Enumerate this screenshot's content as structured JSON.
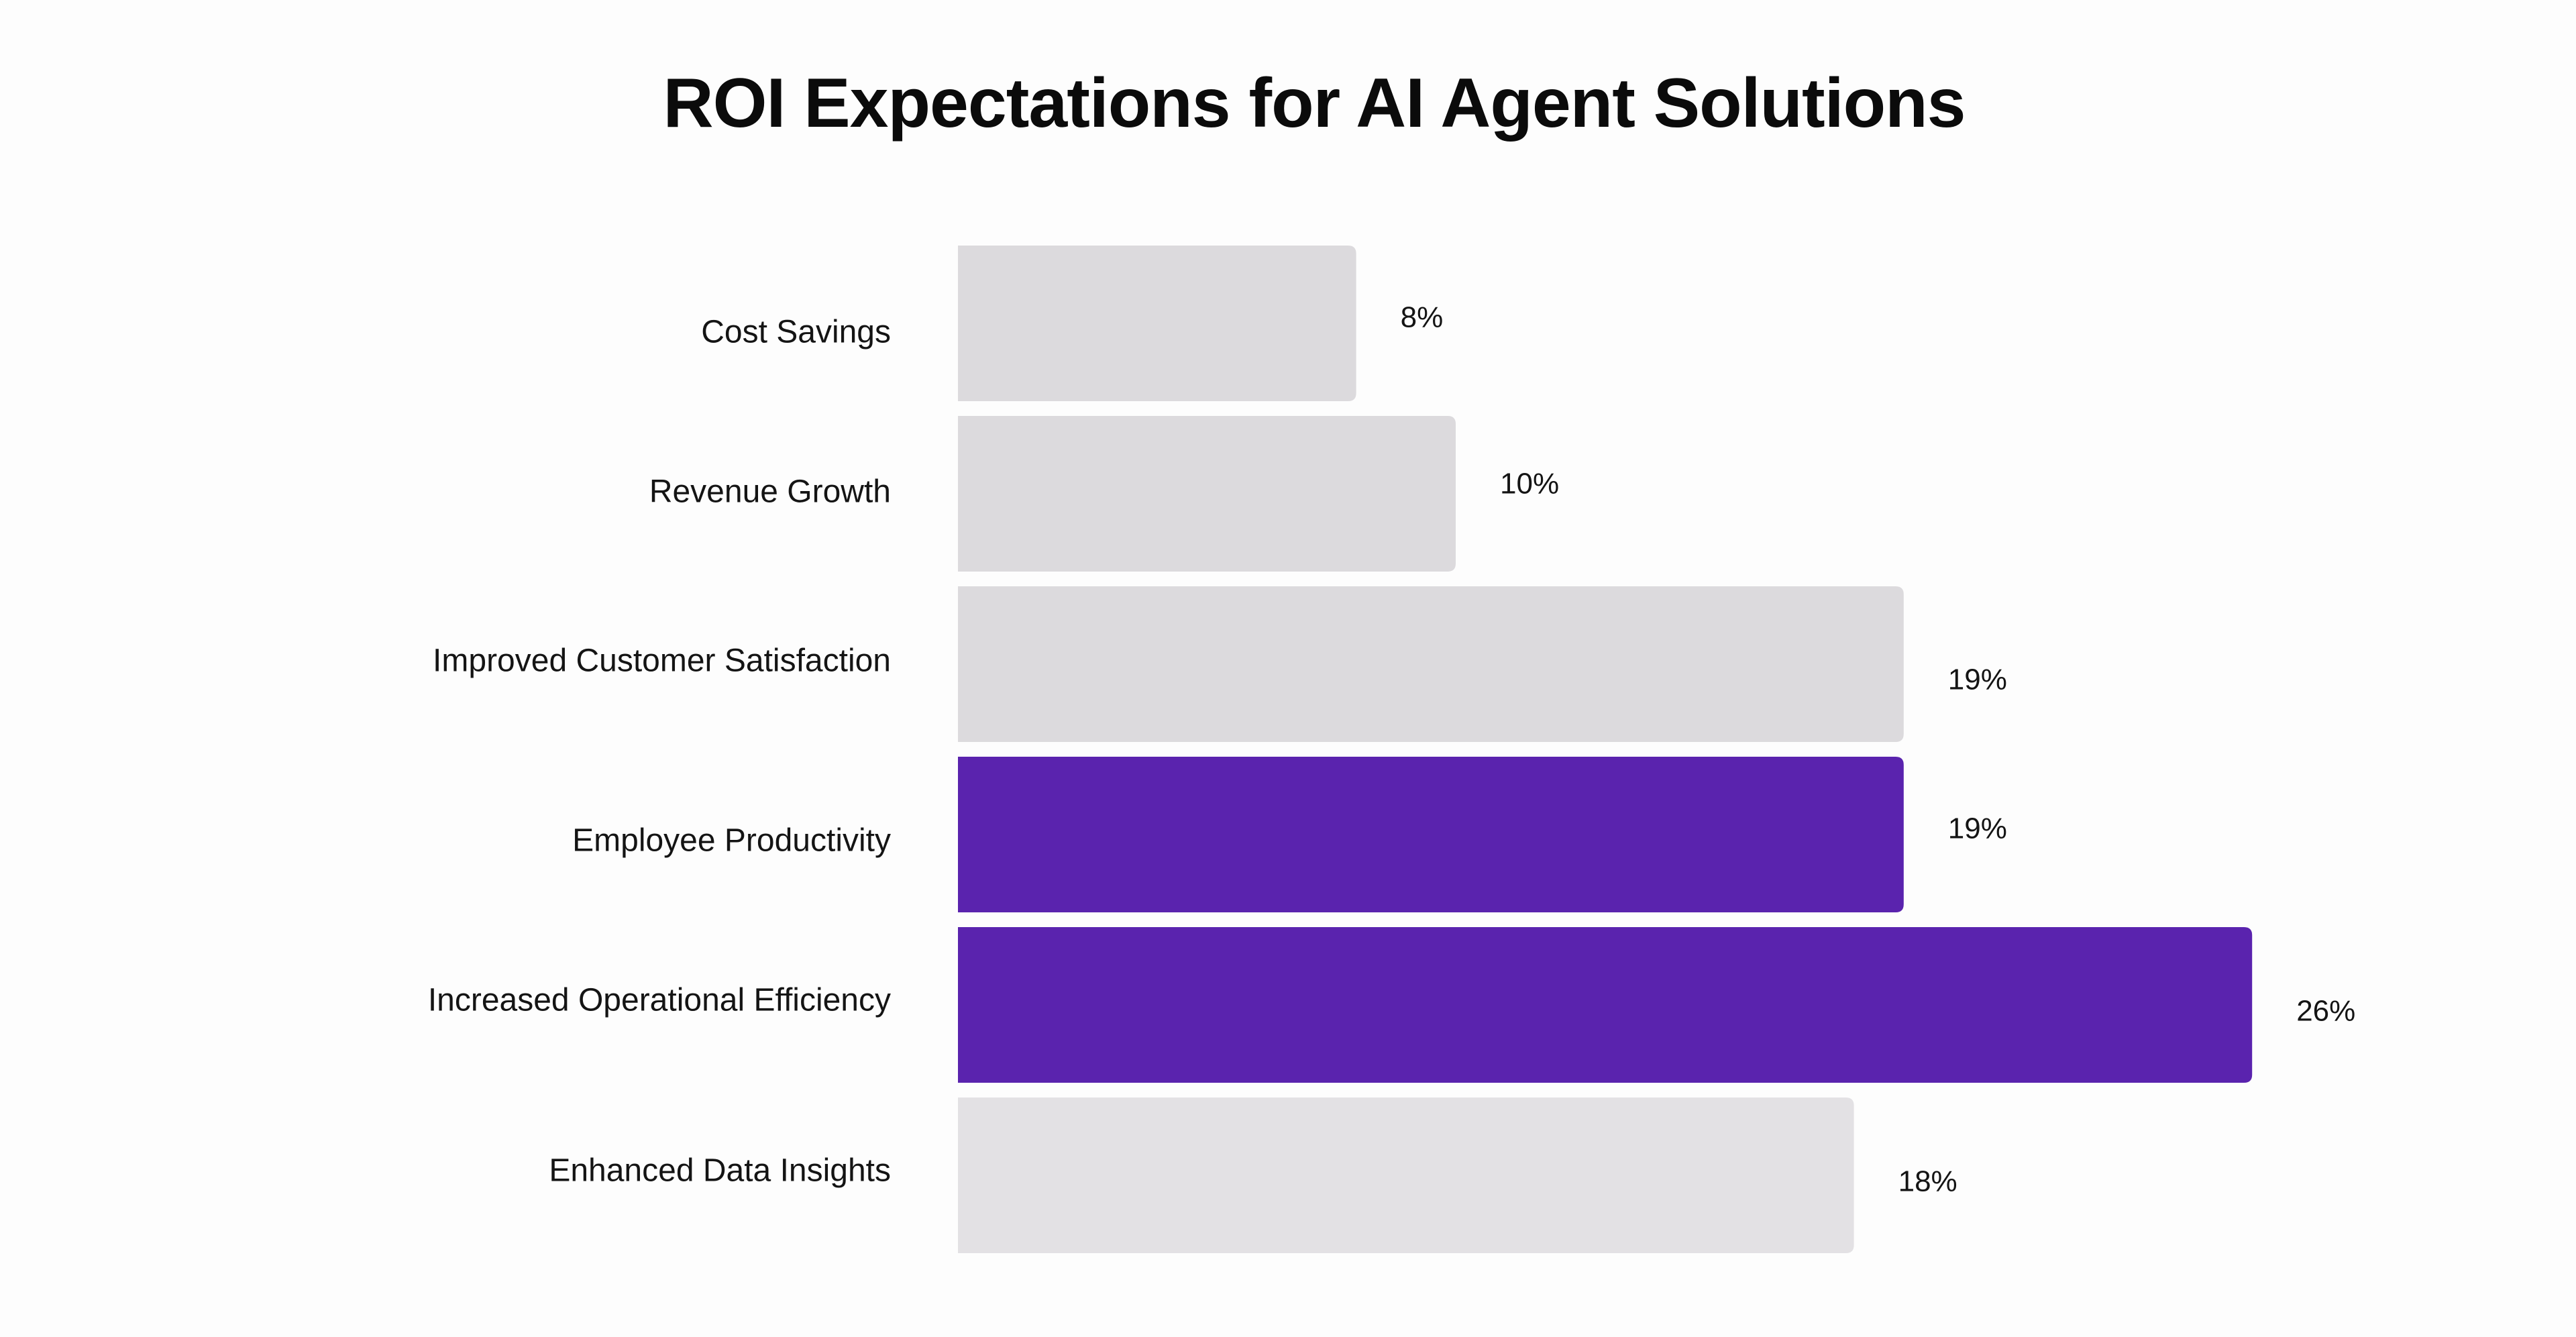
{
  "chart_data": {
    "type": "bar",
    "orientation": "horizontal",
    "title": "ROI Expectations for AI Agent Solutions",
    "categories": [
      "Cost Savings",
      "Revenue Growth",
      "Improved Customer Satisfaction",
      "Employee Productivity",
      "Increased Operational Efficiency",
      "Enhanced Data Insights"
    ],
    "values": [
      8,
      10,
      19,
      19,
      26,
      18
    ],
    "value_labels": [
      "8%",
      "10%",
      "19%",
      "19%",
      "26%",
      "18%"
    ],
    "highlighted": [
      false,
      false,
      false,
      true,
      true,
      false
    ],
    "unit": "%",
    "grid": false,
    "legend": "none"
  },
  "colors": {
    "highlight": "#5a23ae",
    "default": "#dcdadd",
    "default_last": "#e3e1e4",
    "text": "#141414",
    "background": "#fdfdfd"
  }
}
